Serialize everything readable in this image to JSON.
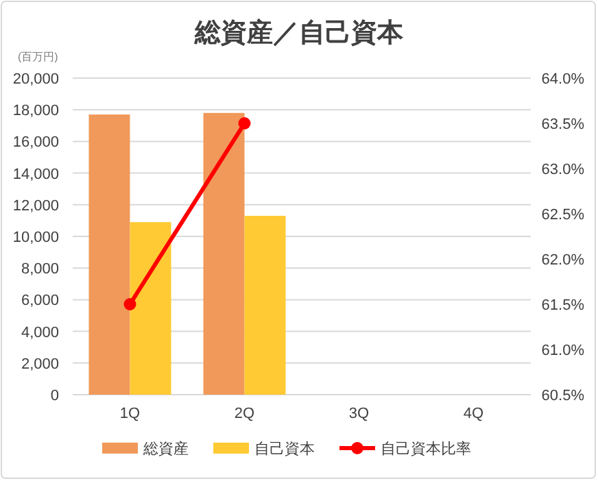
{
  "chart_data": {
    "type": "bar",
    "title": "総資産／自己資本",
    "ylabel": "(百万円)",
    "categories": [
      "1Q",
      "2Q",
      "3Q",
      "4Q"
    ],
    "series": [
      {
        "name": "総資産",
        "color": "#f0995a",
        "values": [
          17700,
          17800,
          null,
          null
        ]
      },
      {
        "name": "自己資本",
        "color": "#ffca33",
        "values": [
          10900,
          11300,
          null,
          null
        ]
      },
      {
        "name": "自己資本比率",
        "type": "line",
        "axis": "y2",
        "color": "#ff0000",
        "marker": "circle",
        "values": [
          61.5,
          63.5,
          null,
          null
        ]
      }
    ],
    "ylim": [
      0,
      20000
    ],
    "yticks": [
      {
        "value": 0,
        "label": "0"
      },
      {
        "value": 2000,
        "label": "2,000"
      },
      {
        "value": 4000,
        "label": "4,000"
      },
      {
        "value": 6000,
        "label": "6,000"
      },
      {
        "value": 8000,
        "label": "8,000"
      },
      {
        "value": 10000,
        "label": "10,000"
      },
      {
        "value": 12000,
        "label": "12,000"
      },
      {
        "value": 14000,
        "label": "14,000"
      },
      {
        "value": 16000,
        "label": "16,000"
      },
      {
        "value": 18000,
        "label": "18,000"
      },
      {
        "value": 20000,
        "label": "20,000"
      }
    ],
    "y2lim": [
      60.5,
      64.0
    ],
    "y2ticks": [
      {
        "value": 60.5,
        "label": "60.5%"
      },
      {
        "value": 61.0,
        "label": "61.0%"
      },
      {
        "value": 61.5,
        "label": "61.5%"
      },
      {
        "value": 62.0,
        "label": "62.0%"
      },
      {
        "value": 62.5,
        "label": "62.5%"
      },
      {
        "value": 63.0,
        "label": "63.0%"
      },
      {
        "value": 63.5,
        "label": "63.5%"
      },
      {
        "value": 64.0,
        "label": "64.0%"
      }
    ],
    "grid": "y",
    "legend": "bottom"
  }
}
